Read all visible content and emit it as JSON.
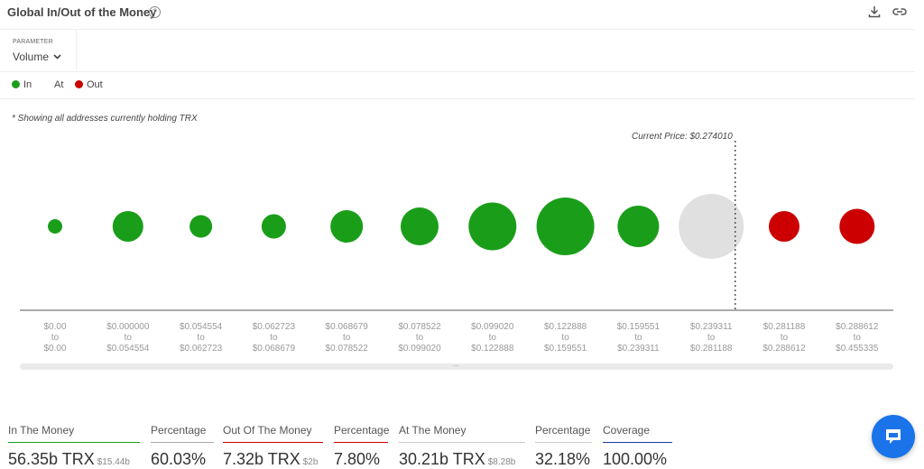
{
  "header": {
    "title": "Global In/Out of the Money",
    "help_icon": "help-icon",
    "help_glyph": "?",
    "download_icon": "download-icon",
    "link_icon": "link-icon"
  },
  "parameter": {
    "label": "PARAMETER",
    "value": "Volume",
    "chevron_icon": "chevron-down-icon"
  },
  "legend": {
    "in_label": "In",
    "at_label": "At",
    "out_label": "Out",
    "in_color": "#1a9e1a",
    "at_color": "#e0e0e0",
    "out_color": "#cc0000"
  },
  "note": "* Showing all addresses currently holding TRX",
  "chart_data": {
    "type": "scatter",
    "title": "Global In/Out of the Money",
    "current_price_label": "Current Price: $0.274010",
    "current_price": 0.27401,
    "range_joiner": "to",
    "categories": [
      {
        "low": "$0.00",
        "high": "$0.00",
        "status": "in",
        "relative_size": 8
      },
      {
        "low": "$0.000000",
        "high": "$0.054554",
        "status": "in",
        "relative_size": 17
      },
      {
        "low": "$0.054554",
        "high": "$0.062723",
        "status": "in",
        "relative_size": 12.5
      },
      {
        "low": "$0.062723",
        "high": "$0.068679",
        "status": "in",
        "relative_size": 13.5
      },
      {
        "low": "$0.068679",
        "high": "$0.078522",
        "status": "in",
        "relative_size": 18
      },
      {
        "low": "$0.078522",
        "high": "$0.099020",
        "status": "in",
        "relative_size": 21
      },
      {
        "low": "$0.099020",
        "high": "$0.122888",
        "status": "in",
        "relative_size": 26.5
      },
      {
        "low": "$0.122888",
        "high": "$0.159551",
        "status": "in",
        "relative_size": 32
      },
      {
        "low": "$0.159551",
        "high": "$0.239311",
        "status": "in",
        "relative_size": 23
      },
      {
        "low": "$0.239311",
        "high": "$0.281188",
        "status": "at",
        "relative_size": 36
      },
      {
        "low": "$0.281188",
        "high": "$0.288612",
        "status": "out",
        "relative_size": 17
      },
      {
        "low": "$0.288612",
        "high": "$0.455335",
        "status": "out",
        "relative_size": 19.5
      }
    ]
  },
  "stats": [
    {
      "label": "In The Money",
      "value": "56.35b TRX",
      "sub": "$15.44b",
      "color": "#1a9e1a"
    },
    {
      "label": "Percentage",
      "value": "60.03%",
      "sub": "",
      "color": "#aaaaaa"
    },
    {
      "label": "Out Of The Money",
      "value": "7.32b TRX",
      "sub": "$2b",
      "color": "#cc0000"
    },
    {
      "label": "Percentage",
      "value": "7.80%",
      "sub": "",
      "color": "#aaaaaa"
    },
    {
      "label": "At The Money",
      "value": "30.21b TRX",
      "sub": "$8.28b",
      "color": "#cccccc"
    },
    {
      "label": "Percentage",
      "value": "32.18%",
      "sub": "",
      "color": "#aaaaaa"
    },
    {
      "label": "Coverage",
      "value": "100.00%",
      "sub": "",
      "color": "#1a3a9e"
    }
  ],
  "chat": {
    "icon": "chat-bubble-icon"
  }
}
